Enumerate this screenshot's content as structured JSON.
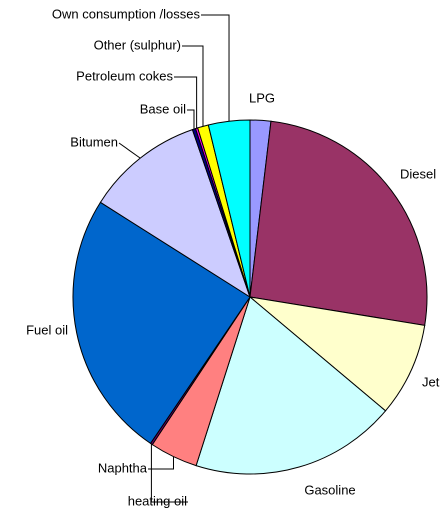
{
  "chart_data": {
    "type": "pie",
    "categories": [
      "LPG",
      "Diesel",
      "Jet",
      "Gasoline",
      "Naphtha",
      "heating oil",
      "Fuel oil",
      "Bitumen",
      "Base oil",
      "Petroleum cokes",
      "Other (sulphur)",
      "Own consumption /losses"
    ],
    "values": [
      1.9,
      25.8,
      8.6,
      18.9,
      4.4,
      0.2,
      24.6,
      10.8,
      0.3,
      0.2,
      1.0,
      3.8
    ],
    "colors": [
      "#9999ff",
      "#993366",
      "#ffffcc",
      "#ccffff",
      "#ff8080",
      "#660066",
      "#0066cc",
      "#ccccff",
      "#000080",
      "#ff00ff",
      "#ffff00",
      "#00ffff"
    ]
  }
}
